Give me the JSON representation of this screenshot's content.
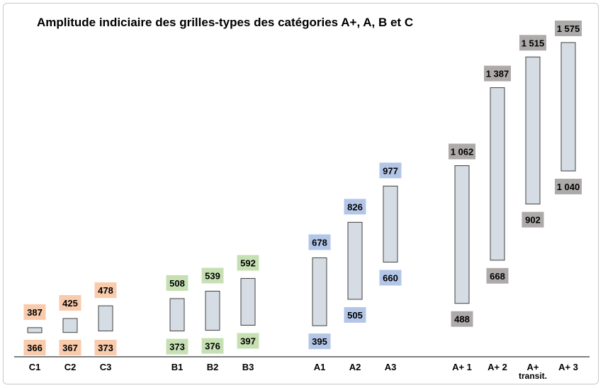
{
  "chart_data": {
    "type": "range-bar",
    "title": "Amplitude indiciaire des grilles-types des catégories A+, A, B et C",
    "y_range": [
      330,
      1600
    ],
    "grid": false,
    "colors": {
      "bar_fill": "#d6dce4",
      "bar_stroke": "#404040",
      "C": "#f8cbad",
      "B": "#c6e0b4",
      "A": "#b4c6e7",
      "A+": "#aeaaaa"
    },
    "groups": [
      {
        "category": "C",
        "label": "C1",
        "min": 366,
        "max": 387,
        "min_label": "366",
        "max_label": "387"
      },
      {
        "category": "C",
        "label": "C2",
        "min": 367,
        "max": 425,
        "min_label": "367",
        "max_label": "425"
      },
      {
        "category": "C",
        "label": "C3",
        "min": 373,
        "max": 478,
        "min_label": "373",
        "max_label": "478"
      },
      {
        "category": "B",
        "label": "B1",
        "min": 373,
        "max": 508,
        "min_label": "373",
        "max_label": "508"
      },
      {
        "category": "B",
        "label": "B2",
        "min": 376,
        "max": 539,
        "min_label": "376",
        "max_label": "539"
      },
      {
        "category": "B",
        "label": "B3",
        "min": 397,
        "max": 592,
        "min_label": "397",
        "max_label": "592"
      },
      {
        "category": "A",
        "label": "A1",
        "min": 395,
        "max": 678,
        "min_label": "395",
        "max_label": "678"
      },
      {
        "category": "A",
        "label": "A2",
        "min": 505,
        "max": 826,
        "min_label": "505",
        "max_label": "826"
      },
      {
        "category": "A",
        "label": "A3",
        "min": 660,
        "max": 977,
        "min_label": "660",
        "max_label": "977"
      },
      {
        "category": "A+",
        "label": "A+ 1",
        "min": 488,
        "max": 1062,
        "min_label": "488",
        "max_label": "1 062"
      },
      {
        "category": "A+",
        "label": "A+ 2",
        "min": 668,
        "max": 1387,
        "min_label": "668",
        "max_label": "1 387"
      },
      {
        "category": "A+",
        "label": [
          "A+",
          "transit."
        ],
        "min": 902,
        "max": 1515,
        "min_label": "902",
        "max_label": "1 515"
      },
      {
        "category": "A+",
        "label": "A+ 3",
        "min": 1040,
        "max": 1575,
        "min_label": "1 040",
        "max_label": "1 575"
      }
    ]
  }
}
